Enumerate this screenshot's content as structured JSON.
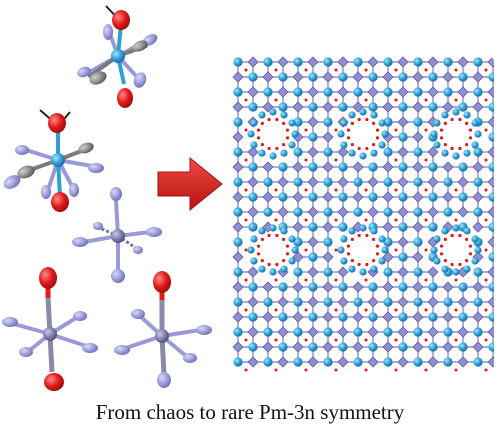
{
  "caption": "From chaos to rare Pm-3n symmetry",
  "colors": {
    "metal": "#2f9fd6",
    "metal_light": "#7fd0f2",
    "nitrogen": "#9a9ad8",
    "nitrogen_dark": "#6d6db8",
    "oxygen": "#e21a1a",
    "carbon": "#8a8a8a",
    "arrow": "#e3231c",
    "arrow_dark": "#b5130f",
    "text": "#111111"
  },
  "icons": {
    "arrow": "right-arrow-icon",
    "molecule": "molecule-icon",
    "framework": "crystal-framework-icon"
  }
}
